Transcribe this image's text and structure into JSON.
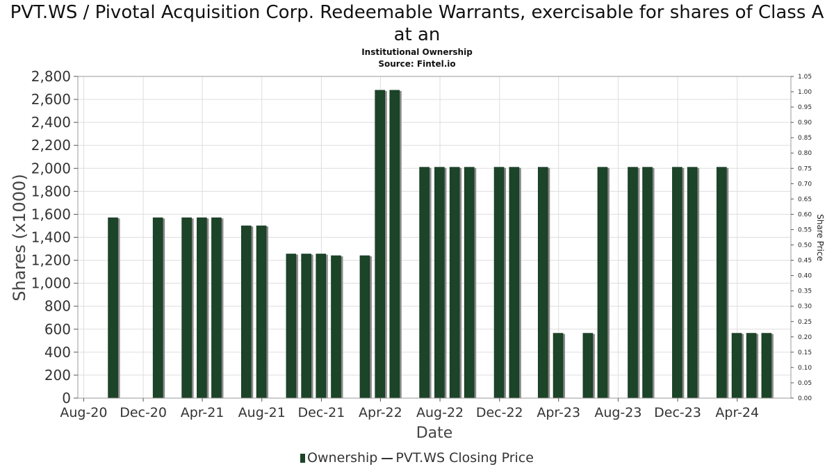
{
  "title": "PVT.WS / Pivotal Acquisition Corp. Redeemable Warrants, exercisable for shares of Class A at an",
  "subtitle": "Institutional Ownership",
  "source": "Source: Fintel.io",
  "legend": {
    "ownership": "Ownership",
    "price": "PVT.WS Closing Price"
  },
  "colors": {
    "bar": "#1c4428",
    "bar_shadow": "#8a8a8a",
    "grid": "#dddddd"
  },
  "chart_data": {
    "type": "bar",
    "xlabel": "Date",
    "ylabel": "Shares (x1000)",
    "y2label": "Share Price",
    "ylim": [
      0,
      2800
    ],
    "y2lim": [
      0,
      1.05
    ],
    "xlim": [
      "2020-07-20",
      "2024-07-20"
    ],
    "xticks": [
      {
        "date": "2020-08-01",
        "label": "Aug-20"
      },
      {
        "date": "2020-12-01",
        "label": "Dec-20"
      },
      {
        "date": "2021-04-01",
        "label": "Apr-21"
      },
      {
        "date": "2021-08-01",
        "label": "Aug-21"
      },
      {
        "date": "2021-12-01",
        "label": "Dec-21"
      },
      {
        "date": "2022-04-01",
        "label": "Apr-22"
      },
      {
        "date": "2022-08-01",
        "label": "Aug-22"
      },
      {
        "date": "2022-12-01",
        "label": "Dec-22"
      },
      {
        "date": "2023-04-01",
        "label": "Apr-23"
      },
      {
        "date": "2023-08-01",
        "label": "Aug-23"
      },
      {
        "date": "2023-12-01",
        "label": "Dec-23"
      },
      {
        "date": "2024-04-01",
        "label": "Apr-24"
      }
    ],
    "yticks": [
      0,
      200,
      400,
      600,
      800,
      1000,
      1200,
      1400,
      1600,
      1800,
      2000,
      2200,
      2400,
      2600,
      2800
    ],
    "y2ticks": [
      "0.00",
      "0.05",
      "0.10",
      "0.15",
      "0.20",
      "0.25",
      "0.30",
      "0.35",
      "0.40",
      "0.45",
      "0.50",
      "0.55",
      "0.60",
      "0.65",
      "0.70",
      "0.75",
      "0.80",
      "0.85",
      "0.90",
      "0.95",
      "1.00",
      "1.05"
    ],
    "series": [
      {
        "name": "Ownership",
        "points": [
          {
            "x": "2020-09-30",
            "y": 1570
          },
          {
            "x": "2020-12-31",
            "y": 1570
          },
          {
            "x": "2021-02-28",
            "y": 1570
          },
          {
            "x": "2021-03-31",
            "y": 1570
          },
          {
            "x": "2021-04-30",
            "y": 1570
          },
          {
            "x": "2021-06-30",
            "y": 1500
          },
          {
            "x": "2021-07-31",
            "y": 1500
          },
          {
            "x": "2021-09-30",
            "y": 1255
          },
          {
            "x": "2021-10-31",
            "y": 1255
          },
          {
            "x": "2021-11-30",
            "y": 1255
          },
          {
            "x": "2021-12-31",
            "y": 1240
          },
          {
            "x": "2022-02-28",
            "y": 1240
          },
          {
            "x": "2022-03-31",
            "y": 2680
          },
          {
            "x": "2022-04-30",
            "y": 2680
          },
          {
            "x": "2022-06-30",
            "y": 2010
          },
          {
            "x": "2022-07-31",
            "y": 2010
          },
          {
            "x": "2022-08-31",
            "y": 2010
          },
          {
            "x": "2022-09-30",
            "y": 2010
          },
          {
            "x": "2022-11-30",
            "y": 2010
          },
          {
            "x": "2022-12-31",
            "y": 2010
          },
          {
            "x": "2023-02-28",
            "y": 2010
          },
          {
            "x": "2023-03-31",
            "y": 565
          },
          {
            "x": "2023-05-31",
            "y": 565
          },
          {
            "x": "2023-06-30",
            "y": 2010
          },
          {
            "x": "2023-08-31",
            "y": 2010
          },
          {
            "x": "2023-09-30",
            "y": 2010
          },
          {
            "x": "2023-11-30",
            "y": 2010
          },
          {
            "x": "2023-12-31",
            "y": 2010
          },
          {
            "x": "2024-02-29",
            "y": 2010
          },
          {
            "x": "2024-03-31",
            "y": 565
          },
          {
            "x": "2024-04-30",
            "y": 565
          },
          {
            "x": "2024-05-31",
            "y": 565
          }
        ]
      }
    ]
  }
}
